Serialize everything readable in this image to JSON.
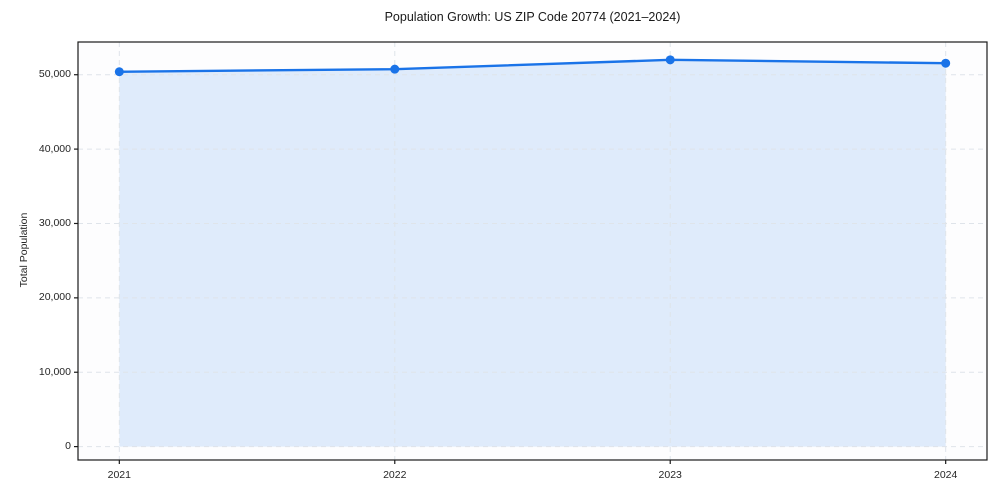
{
  "chart_data": {
    "type": "line",
    "title": "Population Growth: US ZIP Code 20774 (2021–2024)",
    "xlabel": "",
    "ylabel": "Total Population",
    "x": [
      2021,
      2022,
      2023,
      2024
    ],
    "series": [
      {
        "name": "Total Population",
        "values": [
          50400,
          50750,
          52000,
          51550
        ]
      }
    ],
    "xticks": {
      "values": [
        2021,
        2022,
        2023,
        2024
      ],
      "labels": [
        "2021",
        "2022",
        "2023",
        "2024"
      ]
    },
    "yticks": {
      "values": [
        0,
        10000,
        20000,
        30000,
        40000,
        50000
      ],
      "labels": [
        "0",
        "10,000",
        "20,000",
        "30,000",
        "40,000",
        "50,000"
      ]
    },
    "xlim": [
      2020.85,
      2024.15
    ],
    "ylim": [
      -1800,
      54400
    ],
    "grid": true,
    "grid_style": "dashed",
    "legend": false,
    "area_fill": true,
    "marker": "circle",
    "colors": {
      "line": "#1a73e8",
      "marker": "#1a73e8",
      "fill": "rgba(26,115,232,0.13)",
      "grid": "#dfe4ea",
      "spine": "#1a1a1a",
      "tick": "#1a1a1a",
      "text": "#262626",
      "plot_bg": "#fdfdfe",
      "figure_bg": "#ffffff"
    }
  }
}
